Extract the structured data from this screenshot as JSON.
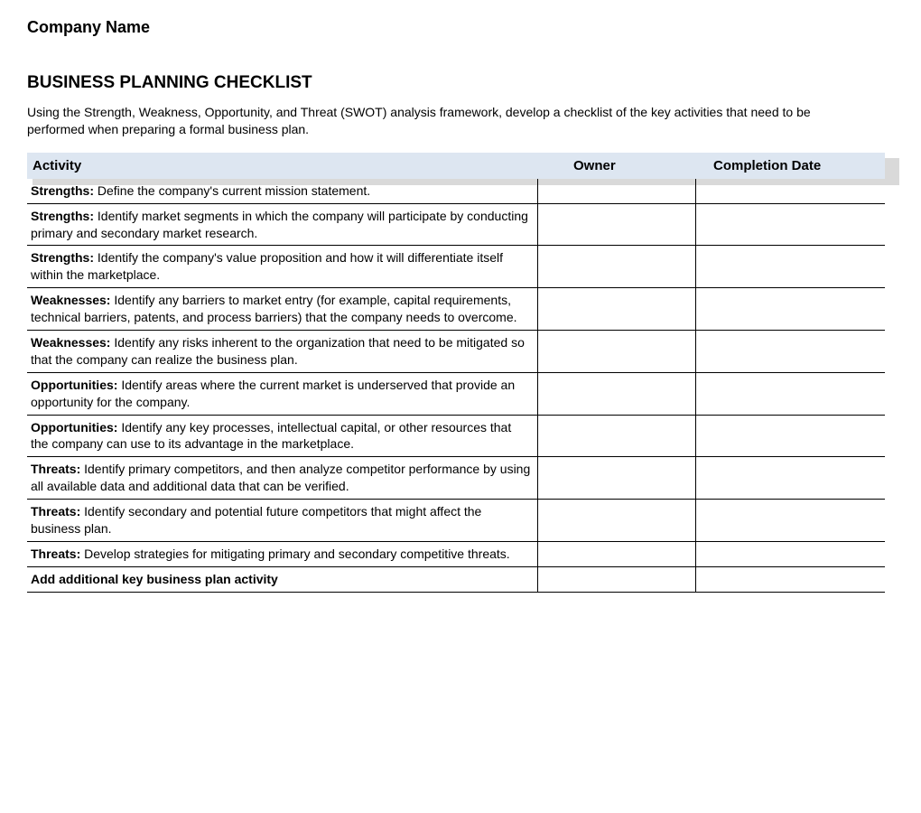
{
  "companyName": "Company Name",
  "title": "BUSINESS PLANNING CHECKLIST",
  "description": "Using the Strength, Weakness, Opportunity, and Threat (SWOT) analysis framework, develop a checklist of the key activities that need to be performed when preparing a formal business plan.",
  "columns": {
    "activity": "Activity",
    "owner": "Owner",
    "completionDate": "Completion Date"
  },
  "colors": {
    "headerBg": "#dde6f1",
    "headerShadow": "#d9d9d9",
    "border": "#000000",
    "text": "#000000",
    "pageBg": "#ffffff"
  },
  "typography": {
    "fontFamily": "Arial",
    "bodyFontSize": 14,
    "titleFontSize": 19,
    "companyFontSize": 18,
    "headerFontSize": 15
  },
  "layout": {
    "tableWidth": 950,
    "colWidths": {
      "activity": 565,
      "owner": 175,
      "date": 210
    }
  },
  "rows": [
    {
      "category": "Strengths:",
      "text": " Define the company's current mission statement.",
      "owner": "",
      "date": "",
      "pad": "lg"
    },
    {
      "category": "Strengths:",
      "text": " Identify market segments in which the company will participate by conducting primary and secondary market research.",
      "owner": "",
      "date": "",
      "pad": "md"
    },
    {
      "category": "Strengths:",
      "text": " Identify the company's value proposition and how it will differentiate itself within the marketplace.",
      "owner": "",
      "date": "",
      "pad": "md"
    },
    {
      "category": "Weaknesses:",
      "text": " Identify any barriers to market entry (for example, capital requirements, technical barriers, patents, and process barriers) that the company needs to overcome.",
      "owner": "",
      "date": "",
      "pad": "sm"
    },
    {
      "category": "Weaknesses:",
      "text": " Identify any risks inherent to the organization that need to be mitigated so that the company can realize the business plan.",
      "owner": "",
      "date": "",
      "pad": "md"
    },
    {
      "category": "Opportunities:",
      "text": " Identify areas where the current market is underserved that provide an opportunity for the company.",
      "owner": "",
      "date": "",
      "pad": "md"
    },
    {
      "category": "Opportunities:",
      "text": " Identify any key processes, intellectual capital, or other resources that the company can use to its advantage in the marketplace.",
      "owner": "",
      "date": "",
      "pad": "sm"
    },
    {
      "category": "Threats:",
      "text": " Identify primary competitors, and then analyze competitor performance by using all available data and additional data that can be verified.",
      "owner": "",
      "date": "",
      "pad": "sm"
    },
    {
      "category": "Threats:",
      "text": " Identify secondary and potential future competitors that might affect the business plan.",
      "owner": "",
      "date": "",
      "pad": "sm"
    },
    {
      "category": "Threats:",
      "text": " Develop strategies for mitigating primary and secondary competitive threats.",
      "owner": "",
      "date": "",
      "pad": "md"
    },
    {
      "category": "Add additional key business plan activity",
      "text": "",
      "owner": "",
      "date": "",
      "pad": "last"
    }
  ]
}
